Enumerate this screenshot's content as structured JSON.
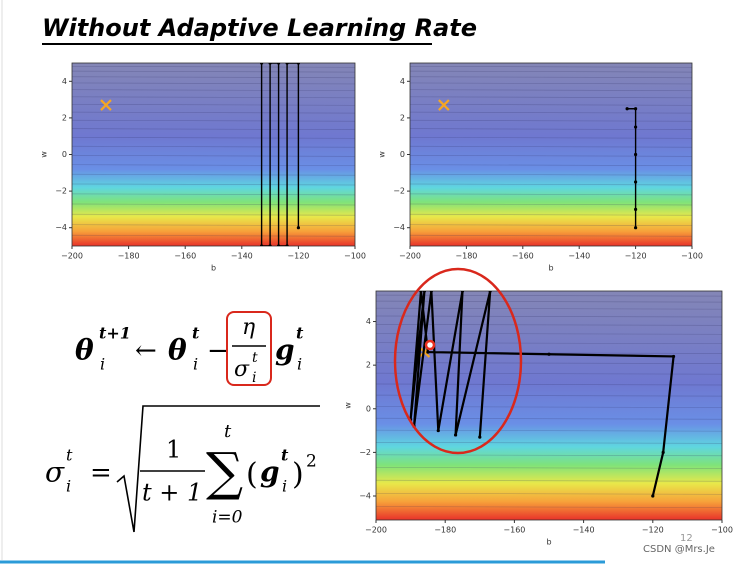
{
  "title": "Without Adaptive Learning Rate",
  "formulas": [
    {
      "parts": [
        "θ",
        "t+1",
        "i",
        "←",
        "θ",
        "t",
        "i",
        "−",
        "η",
        "σ",
        "t",
        "i",
        "g",
        "t",
        "i"
      ]
    },
    {
      "parts": [
        "σ",
        "t",
        "i",
        "=",
        "1",
        "t + 1",
        "t",
        "∑",
        "i=0",
        "(",
        "g",
        "t",
        "i",
        ")",
        "2"
      ]
    }
  ],
  "page_number": "12",
  "watermark": "CSDN @Mrs.Je",
  "chart_data": [
    {
      "type": "contour_trajectory",
      "xlabel": "b",
      "ylabel": "w",
      "xlim": [
        -200,
        -100
      ],
      "ylim": [
        -5,
        5
      ],
      "xticks": [
        {
          "value": -200,
          "label": "−200"
        },
        {
          "value": -180,
          "label": "−180"
        },
        {
          "value": -160,
          "label": "−160"
        },
        {
          "value": -140,
          "label": "−140"
        },
        {
          "value": -120,
          "label": "−120"
        },
        {
          "value": -100,
          "label": "−100"
        }
      ],
      "yticks": [
        {
          "value": -4,
          "label": "−4"
        },
        {
          "value": -2,
          "label": "−2"
        },
        0,
        2,
        4
      ],
      "target": {
        "x": -188,
        "y": 2.7,
        "color": "#f5a623"
      },
      "series": [
        {
          "color": "#000000",
          "x": [
            -120,
            -120,
            -124,
            -124,
            -127,
            -127,
            -130,
            -130,
            -133,
            -133
          ],
          "y": [
            -4,
            5,
            5,
            -5,
            -5,
            5,
            5,
            -5,
            -5,
            5
          ]
        }
      ]
    },
    {
      "type": "contour_trajectory",
      "xlabel": "b",
      "ylabel": "w",
      "xlim": [
        -200,
        -100
      ],
      "ylim": [
        -5,
        5
      ],
      "xticks": [
        {
          "value": -200,
          "label": "−200"
        },
        {
          "value": -180,
          "label": "−180"
        },
        {
          "value": -160,
          "label": "−160"
        },
        {
          "value": -140,
          "label": "−140"
        },
        {
          "value": -120,
          "label": "−120"
        },
        {
          "value": -100,
          "label": "−100"
        }
      ],
      "yticks": [
        {
          "value": -4,
          "label": "−4"
        },
        {
          "value": -2,
          "label": "−2"
        },
        0,
        2,
        4
      ],
      "target": {
        "x": -188,
        "y": 2.7,
        "color": "#f5a623"
      },
      "series": [
        {
          "color": "#000000",
          "x": [
            -120,
            -120,
            -120,
            -120,
            -120,
            -120,
            -123
          ],
          "y": [
            -4,
            -3,
            -1.5,
            0,
            1.5,
            2.5,
            2.5
          ]
        }
      ]
    },
    {
      "type": "contour_trajectory",
      "xlabel": "b",
      "ylabel": "w",
      "xlim": [
        -200,
        -100
      ],
      "ylim": [
        -5.1,
        5.4
      ],
      "xticks": [
        {
          "value": -200,
          "label": "−200"
        },
        {
          "value": -180,
          "label": "−180"
        },
        {
          "value": -160,
          "label": "−160"
        },
        {
          "value": -140,
          "label": "−140"
        },
        {
          "value": -120,
          "label": "−120"
        },
        {
          "value": -100,
          "label": "−100"
        }
      ],
      "yticks": [
        {
          "value": -4,
          "label": "−4"
        },
        {
          "value": -2,
          "label": "−2"
        },
        0,
        2,
        4
      ],
      "target": {
        "x": -186,
        "y": 2.6,
        "color": "#f5a623"
      },
      "series": [
        {
          "color": "#000000",
          "x": [
            -120,
            -117,
            -114,
            -150,
            -185,
            -187,
            -190,
            -186,
            -189,
            -184,
            -182,
            -175,
            -177,
            -167,
            -170
          ],
          "y": [
            -4,
            -2,
            2.4,
            2.5,
            2.6,
            5.4,
            -0.5,
            5.4,
            -0.8,
            5.4,
            -1,
            5.4,
            -1.2,
            5.4,
            -1.3
          ]
        }
      ]
    }
  ]
}
